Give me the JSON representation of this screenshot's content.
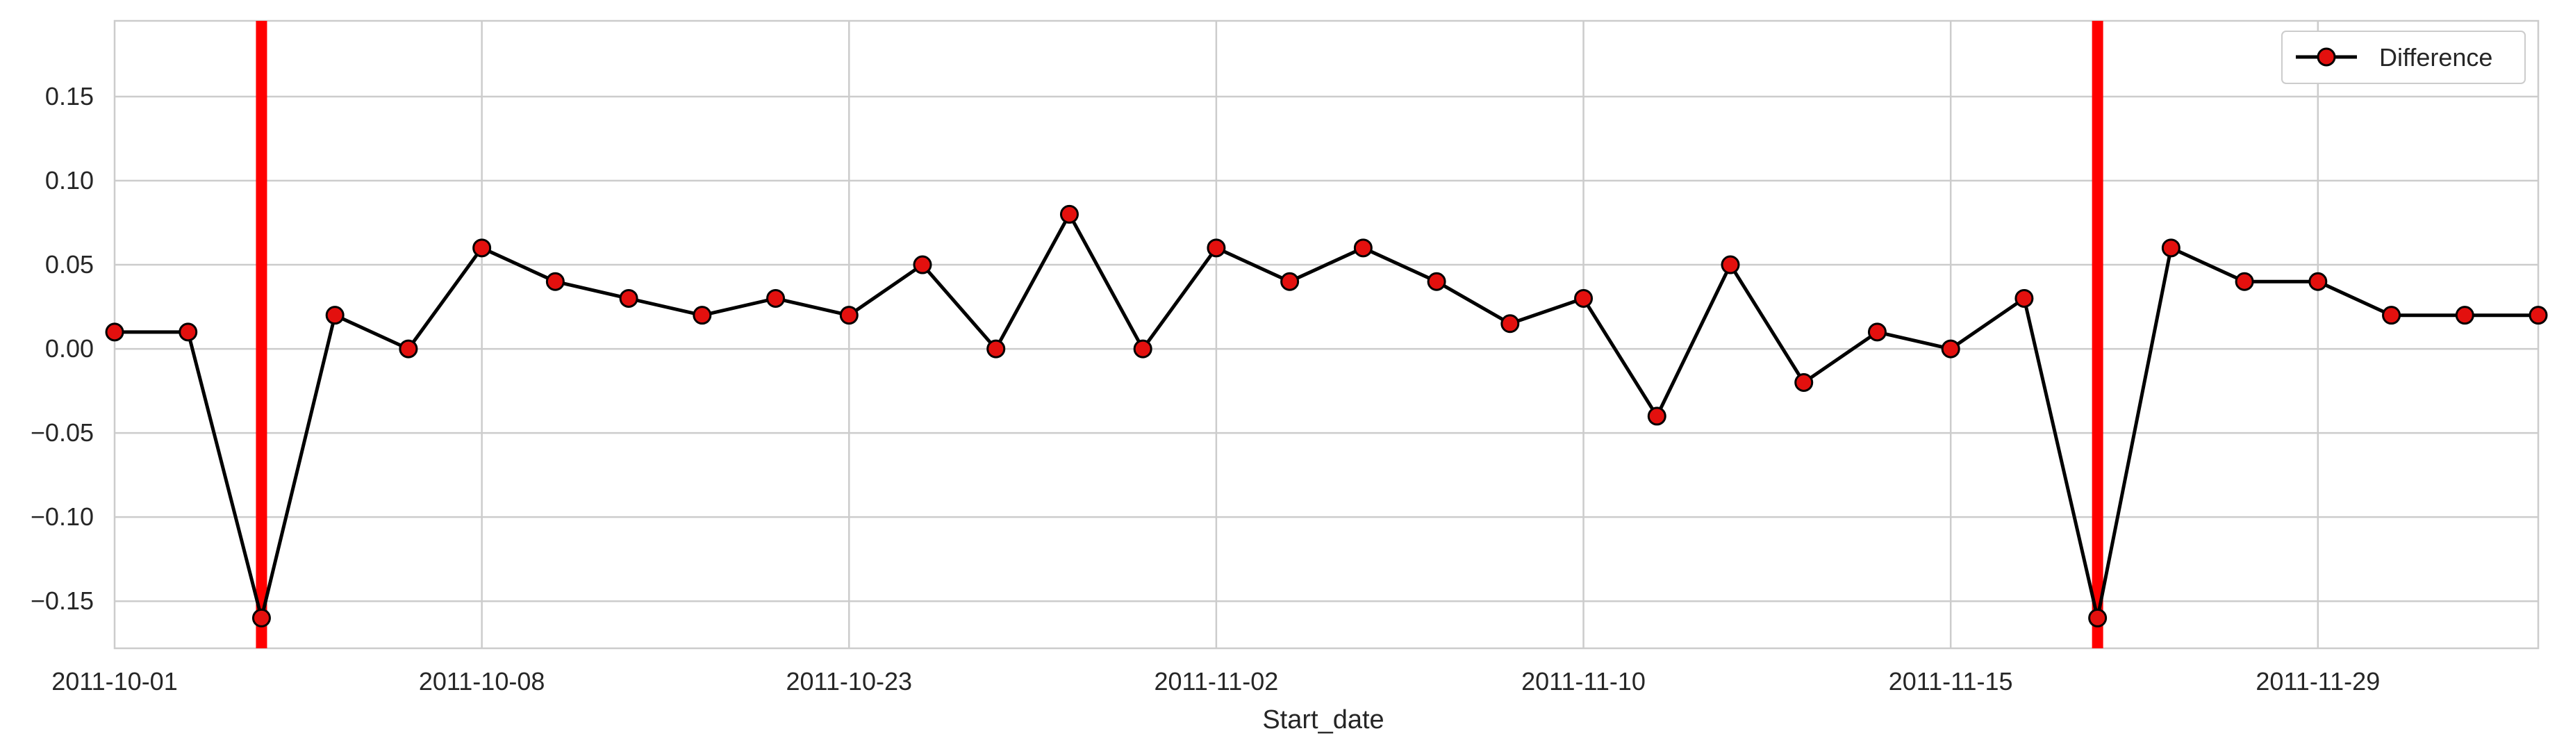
{
  "chart_data": {
    "type": "line",
    "xlabel": "Start_date",
    "ylabel": "",
    "ylim": [
      -0.178,
      0.195
    ],
    "yticks": [
      -0.15,
      -0.1,
      -0.05,
      0.0,
      0.05,
      0.1,
      0.15
    ],
    "ytick_labels": [
      "−0.15",
      "−0.10",
      "−0.05",
      "0.00",
      "0.05",
      "0.10",
      "0.15"
    ],
    "xtick_labels": [
      "2011-10-01",
      "2011-10-08",
      "2011-10-23",
      "2011-11-02",
      "2011-11-10",
      "2011-11-15",
      "2011-11-29"
    ],
    "grid": true,
    "legend": {
      "placement": "top-right"
    },
    "series": [
      {
        "name": "Difference",
        "line_color": "#000000",
        "marker_color": "#e3100e",
        "values": [
          0.01,
          0.01,
          -0.16,
          0.02,
          0.0,
          0.06,
          0.04,
          0.03,
          0.02,
          0.03,
          0.02,
          0.05,
          0.0,
          0.08,
          0.0,
          0.06,
          0.04,
          0.06,
          0.04,
          0.015,
          0.03,
          -0.04,
          0.05,
          -0.02,
          0.01,
          0.0,
          0.03,
          -0.16,
          0.06,
          0.04,
          0.04,
          0.02,
          0.02,
          0.02
        ]
      }
    ],
    "vlines": {
      "color": "#ff0000",
      "at_index": [
        2,
        27
      ]
    }
  }
}
